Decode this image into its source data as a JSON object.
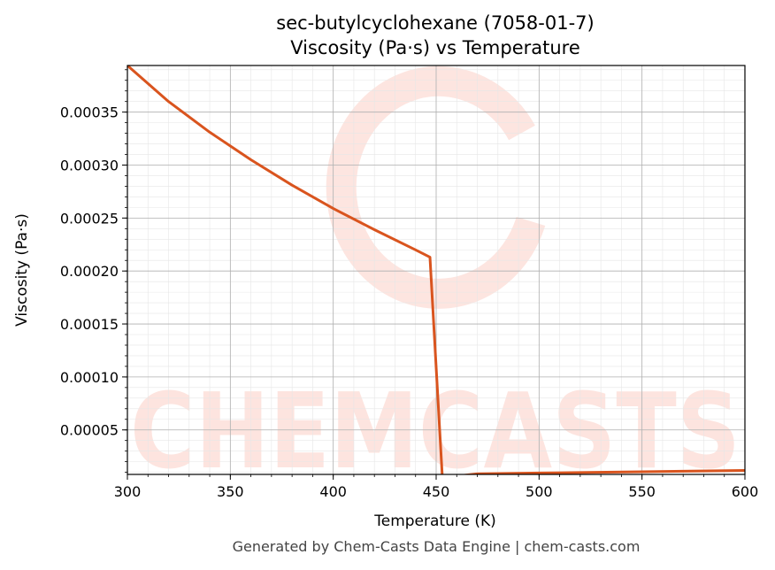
{
  "chart_data": {
    "type": "line",
    "title": "sec-butylcyclohexane (7058-01-7)",
    "subtitle": "Viscosity (Pa·s) vs Temperature",
    "xlabel": "Temperature (K)",
    "ylabel": "Viscosity (Pa·s)",
    "xlim": [
      300,
      600
    ],
    "ylim": [
      8e-06,
      0.000394
    ],
    "xticks": [
      300,
      350,
      400,
      450,
      500,
      550,
      600
    ],
    "xtick_labels": [
      "300",
      "350",
      "400",
      "450",
      "500",
      "550",
      "600"
    ],
    "yticks": [
      5e-05,
      0.0001,
      0.00015,
      0.0002,
      0.00025,
      0.0003,
      0.00035
    ],
    "ytick_labels": [
      "0.00005",
      "0.00010",
      "0.00015",
      "0.00020",
      "0.00025",
      "0.00030",
      "0.00035"
    ],
    "grid": true,
    "series": [
      {
        "color": "#d9541e",
        "x": [
          300,
          320,
          340,
          360,
          380,
          400,
          420,
          440,
          447,
          453,
          470,
          500,
          550,
          600
        ],
        "y": [
          0.000394,
          0.00036,
          0.000331,
          0.000305,
          0.000281,
          0.000259,
          0.000239,
          0.00022,
          0.000213,
          5e-06,
          8.5e-06,
          9.3e-06,
          1.05e-05,
          1.18e-05
        ]
      }
    ],
    "watermark": "CHEMCASTS"
  },
  "footer": "Generated by Chem-Casts Data Engine | chem-casts.com"
}
